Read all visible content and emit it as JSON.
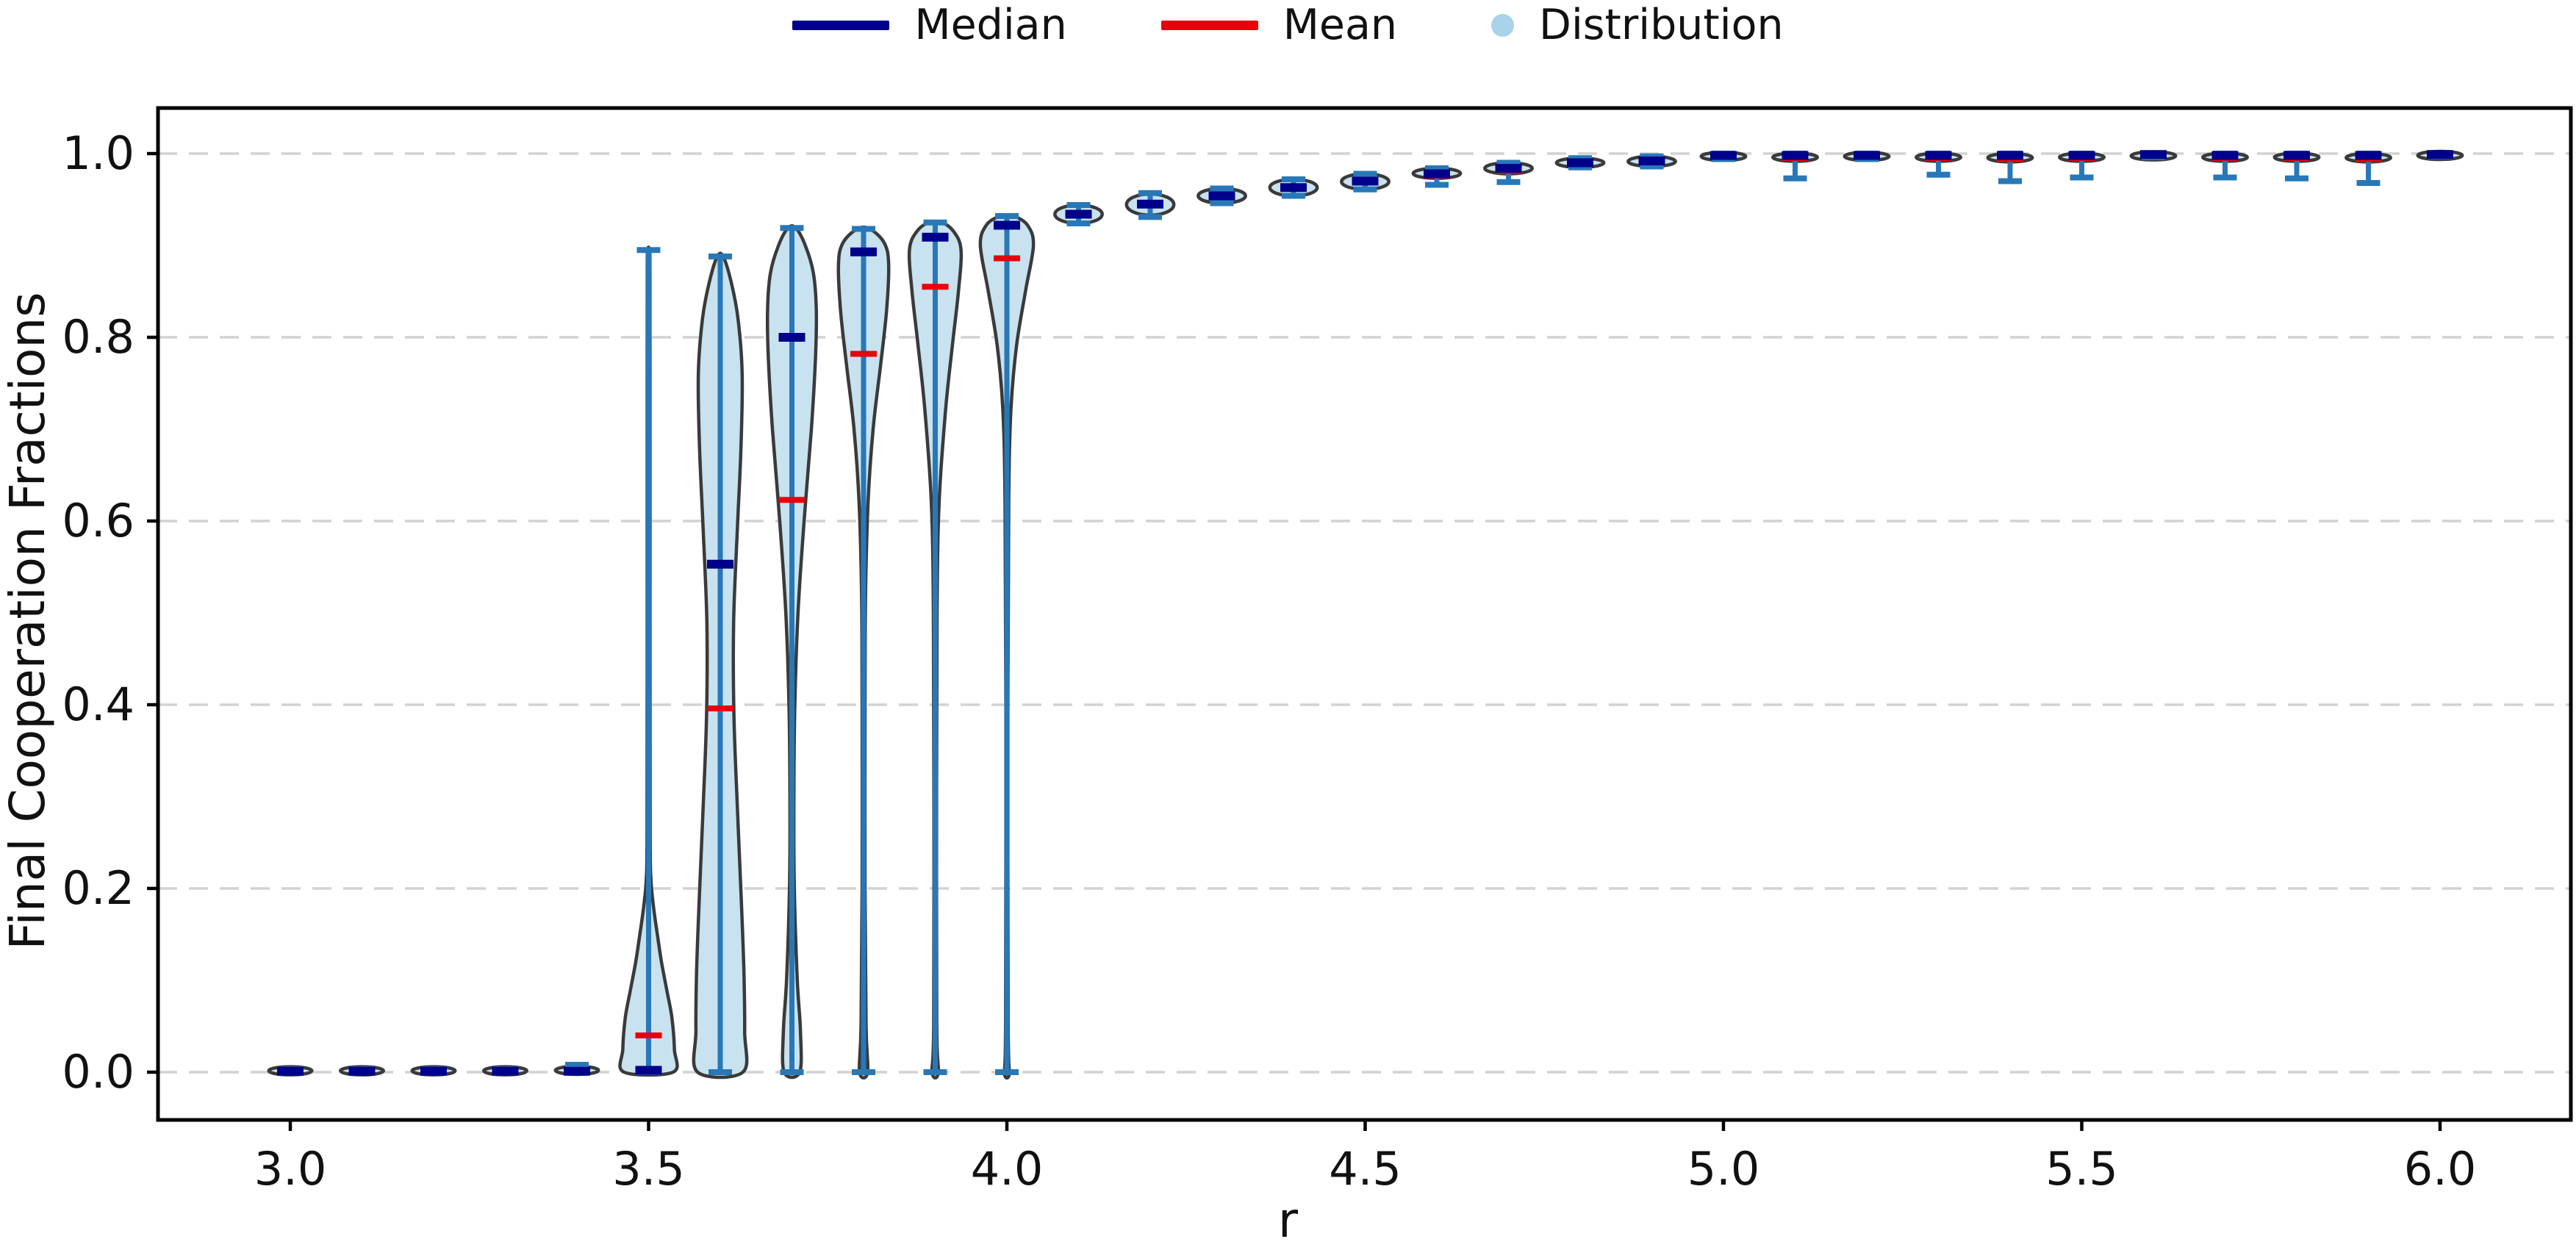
{
  "figure_background": "#ffffff",
  "legend": {
    "items": [
      {
        "label": "Median",
        "marker": "line",
        "color": "#00008b"
      },
      {
        "label": "Mean",
        "marker": "line",
        "color": "#e8000b"
      },
      {
        "label": "Distribution",
        "marker": "dot",
        "color": "#a8d3e8"
      }
    ]
  },
  "chart_data": {
    "type": "violin",
    "title": "",
    "xlabel": "r",
    "ylabel": "Final Cooperation Fractions",
    "xlim": [
      2.815,
      6.185
    ],
    "ylim": [
      -0.052,
      1.049
    ],
    "grid": {
      "axis": "y",
      "style": "dashed",
      "color": "#d2d2d2"
    },
    "x_ticks": [
      {
        "label": "3.0",
        "value": 3.0
      },
      {
        "label": "3.5",
        "value": 3.5
      },
      {
        "label": "4.0",
        "value": 4.0
      },
      {
        "label": "4.5",
        "value": 4.5
      },
      {
        "label": "5.0",
        "value": 5.0
      },
      {
        "label": "5.5",
        "value": 5.5
      },
      {
        "label": "6.0",
        "value": 6.0
      }
    ],
    "y_ticks": [
      {
        "label": "0.0",
        "value": 0.0
      },
      {
        "label": "0.2",
        "value": 0.2
      },
      {
        "label": "0.4",
        "value": 0.4
      },
      {
        "label": "0.6",
        "value": 0.6
      },
      {
        "label": "0.8",
        "value": 0.8
      },
      {
        "label": "1.0",
        "value": 1.0
      }
    ],
    "colors": {
      "body_fill": "#c9e2ef",
      "body_edge": "#3a3a3a",
      "range_line": "#2878b8",
      "median": "#00008b",
      "mean": "#e8000b",
      "spine": "#000000"
    },
    "violins": [
      {
        "r": 3.0,
        "min": 0.0,
        "max": 0.003,
        "median": 0.001,
        "mean": 0.001,
        "hw": 0.03,
        "body": [
          0.0,
          0.003
        ]
      },
      {
        "r": 3.1,
        "min": 0.0,
        "max": 0.003,
        "median": 0.001,
        "mean": 0.001,
        "hw": 0.03,
        "body": [
          0.0,
          0.003
        ]
      },
      {
        "r": 3.2,
        "min": 0.0,
        "max": 0.003,
        "median": 0.001,
        "mean": 0.001,
        "hw": 0.03,
        "body": [
          0.0,
          0.003
        ]
      },
      {
        "r": 3.3,
        "min": 0.0,
        "max": 0.003,
        "median": 0.001,
        "mean": 0.001,
        "hw": 0.03,
        "body": [
          0.0,
          0.003
        ]
      },
      {
        "r": 3.4,
        "min": 0.0,
        "max": 0.008,
        "median": 0.001,
        "mean": 0.002,
        "hw": 0.03,
        "body": [
          0.0,
          0.004
        ]
      },
      {
        "r": 3.5,
        "min": 0.0,
        "max": 0.895,
        "median": 0.002,
        "mean": 0.04,
        "hw": 0.036,
        "profile": [
          [
            0,
            0.95
          ],
          [
            0.025,
            1.0
          ],
          [
            0.06,
            0.9
          ],
          [
            0.09,
            0.7
          ],
          [
            0.12,
            0.5
          ],
          [
            0.15,
            0.34
          ],
          [
            0.18,
            0.19
          ],
          [
            0.21,
            0.09
          ],
          [
            0.26,
            0.06
          ],
          [
            0.5,
            0.055
          ],
          [
            0.75,
            0.055
          ],
          [
            0.87,
            0.05
          ],
          [
            0.895,
            0.04
          ]
        ]
      },
      {
        "r": 3.6,
        "min": 0.0,
        "max": 0.888,
        "median": 0.553,
        "mean": 0.396,
        "hw": 0.034,
        "profile": [
          [
            0,
            0.93
          ],
          [
            0.045,
            1.0
          ],
          [
            0.11,
            0.97
          ],
          [
            0.19,
            0.86
          ],
          [
            0.29,
            0.7
          ],
          [
            0.39,
            0.56
          ],
          [
            0.49,
            0.55
          ],
          [
            0.59,
            0.7
          ],
          [
            0.68,
            0.85
          ],
          [
            0.76,
            0.9
          ],
          [
            0.82,
            0.73
          ],
          [
            0.86,
            0.45
          ],
          [
            0.888,
            0.12
          ]
        ]
      },
      {
        "r": 3.7,
        "min": 0.0,
        "max": 0.919,
        "median": 0.8,
        "mean": 0.623,
        "hw": 0.034,
        "profile": [
          [
            0,
            0.32
          ],
          [
            0.045,
            0.35
          ],
          [
            0.1,
            0.22
          ],
          [
            0.2,
            0.1
          ],
          [
            0.3,
            0.08
          ],
          [
            0.4,
            0.12
          ],
          [
            0.5,
            0.25
          ],
          [
            0.6,
            0.5
          ],
          [
            0.7,
            0.8
          ],
          [
            0.78,
            0.97
          ],
          [
            0.83,
            1.0
          ],
          [
            0.87,
            0.88
          ],
          [
            0.9,
            0.55
          ],
          [
            0.919,
            0.16
          ]
        ]
      },
      {
        "r": 3.8,
        "min": 0.0,
        "max": 0.918,
        "median": 0.893,
        "mean": 0.782,
        "hw": 0.035,
        "profile": [
          [
            0,
            0.16
          ],
          [
            0.05,
            0.1
          ],
          [
            0.2,
            0.06
          ],
          [
            0.4,
            0.06
          ],
          [
            0.52,
            0.08
          ],
          [
            0.62,
            0.18
          ],
          [
            0.7,
            0.38
          ],
          [
            0.77,
            0.68
          ],
          [
            0.83,
            0.92
          ],
          [
            0.88,
            1.0
          ],
          [
            0.903,
            0.82
          ],
          [
            0.918,
            0.25
          ]
        ]
      },
      {
        "r": 3.9,
        "min": 0.0,
        "max": 0.925,
        "median": 0.909,
        "mean": 0.855,
        "hw": 0.036,
        "profile": [
          [
            0,
            0.12
          ],
          [
            0.05,
            0.06
          ],
          [
            0.3,
            0.05
          ],
          [
            0.5,
            0.07
          ],
          [
            0.62,
            0.15
          ],
          [
            0.72,
            0.4
          ],
          [
            0.79,
            0.66
          ],
          [
            0.85,
            0.9
          ],
          [
            0.895,
            1.0
          ],
          [
            0.915,
            0.72
          ],
          [
            0.925,
            0.25
          ]
        ]
      },
      {
        "r": 4.0,
        "min": 0.0,
        "max": 0.932,
        "median": 0.922,
        "mean": 0.886,
        "hw": 0.037,
        "profile": [
          [
            0,
            0.1
          ],
          [
            0.05,
            0.05
          ],
          [
            0.4,
            0.04
          ],
          [
            0.62,
            0.07
          ],
          [
            0.72,
            0.15
          ],
          [
            0.79,
            0.36
          ],
          [
            0.85,
            0.7
          ],
          [
            0.9,
            1.0
          ],
          [
            0.922,
            0.78
          ],
          [
            0.932,
            0.25
          ]
        ]
      },
      {
        "r": 4.1,
        "min": 0.924,
        "max": 0.944,
        "median": 0.934,
        "mean": 0.933,
        "hw": 0.033,
        "body": [
          0.924,
          0.944
        ]
      },
      {
        "r": 4.2,
        "min": 0.931,
        "max": 0.957,
        "median": 0.945,
        "mean": 0.944,
        "hw": 0.033,
        "body": [
          0.933,
          0.956
        ]
      },
      {
        "r": 4.3,
        "min": 0.946,
        "max": 0.962,
        "median": 0.954,
        "mean": 0.955,
        "hw": 0.033,
        "body": [
          0.946,
          0.962
        ]
      },
      {
        "r": 4.4,
        "min": 0.954,
        "max": 0.972,
        "median": 0.963,
        "mean": 0.962,
        "hw": 0.033,
        "body": [
          0.954,
          0.972
        ]
      },
      {
        "r": 4.5,
        "min": 0.961,
        "max": 0.978,
        "median": 0.97,
        "mean": 0.969,
        "hw": 0.033,
        "body": [
          0.961,
          0.978
        ]
      },
      {
        "r": 4.6,
        "min": 0.966,
        "max": 0.984,
        "median": 0.978,
        "mean": 0.976,
        "hw": 0.033,
        "body": [
          0.973,
          0.984
        ]
      },
      {
        "r": 4.7,
        "min": 0.969,
        "max": 0.99,
        "median": 0.984,
        "mean": 0.981,
        "hw": 0.033,
        "body": [
          0.978,
          0.99
        ]
      },
      {
        "r": 4.8,
        "min": 0.985,
        "max": 0.995,
        "median": 0.99,
        "mean": 0.99,
        "hw": 0.033,
        "body": [
          0.985,
          0.995
        ]
      },
      {
        "r": 4.9,
        "min": 0.986,
        "max": 0.997,
        "median": 0.992,
        "mean": 0.992,
        "hw": 0.033,
        "body": [
          0.986,
          0.997
        ]
      },
      {
        "r": 5.0,
        "min": 0.994,
        "max": 1.0,
        "median": 0.998,
        "mean": 0.997,
        "hw": 0.031,
        "body": [
          0.994,
          1.0
        ]
      },
      {
        "r": 5.1,
        "min": 0.973,
        "max": 1.0,
        "median": 0.998,
        "mean": 0.995,
        "hw": 0.031,
        "body": [
          0.992,
          1.0
        ]
      },
      {
        "r": 5.2,
        "min": 0.994,
        "max": 1.0,
        "median": 0.998,
        "mean": 0.997,
        "hw": 0.031,
        "body": [
          0.994,
          1.0
        ]
      },
      {
        "r": 5.3,
        "min": 0.977,
        "max": 1.0,
        "median": 0.998,
        "mean": 0.995,
        "hw": 0.031,
        "body": [
          0.992,
          1.0
        ]
      },
      {
        "r": 5.4,
        "min": 0.97,
        "max": 1.0,
        "median": 0.998,
        "mean": 0.994,
        "hw": 0.031,
        "body": [
          0.991,
          1.0
        ]
      },
      {
        "r": 5.5,
        "min": 0.974,
        "max": 1.0,
        "median": 0.998,
        "mean": 0.995,
        "hw": 0.031,
        "body": [
          0.992,
          1.0
        ]
      },
      {
        "r": 5.6,
        "min": 0.996,
        "max": 1.0,
        "median": 0.999,
        "mean": 0.998,
        "hw": 0.031,
        "body": [
          0.995,
          1.0
        ]
      },
      {
        "r": 5.7,
        "min": 0.974,
        "max": 1.0,
        "median": 0.998,
        "mean": 0.995,
        "hw": 0.031,
        "body": [
          0.992,
          1.0
        ]
      },
      {
        "r": 5.8,
        "min": 0.973,
        "max": 1.0,
        "median": 0.998,
        "mean": 0.995,
        "hw": 0.031,
        "body": [
          0.992,
          1.0
        ]
      },
      {
        "r": 5.9,
        "min": 0.968,
        "max": 1.0,
        "median": 0.998,
        "mean": 0.994,
        "hw": 0.031,
        "body": [
          0.991,
          1.0
        ]
      },
      {
        "r": 6.0,
        "min": 0.997,
        "max": 1.0,
        "median": 0.999,
        "mean": 0.999,
        "hw": 0.031,
        "body": [
          0.996,
          1.0
        ]
      }
    ]
  }
}
